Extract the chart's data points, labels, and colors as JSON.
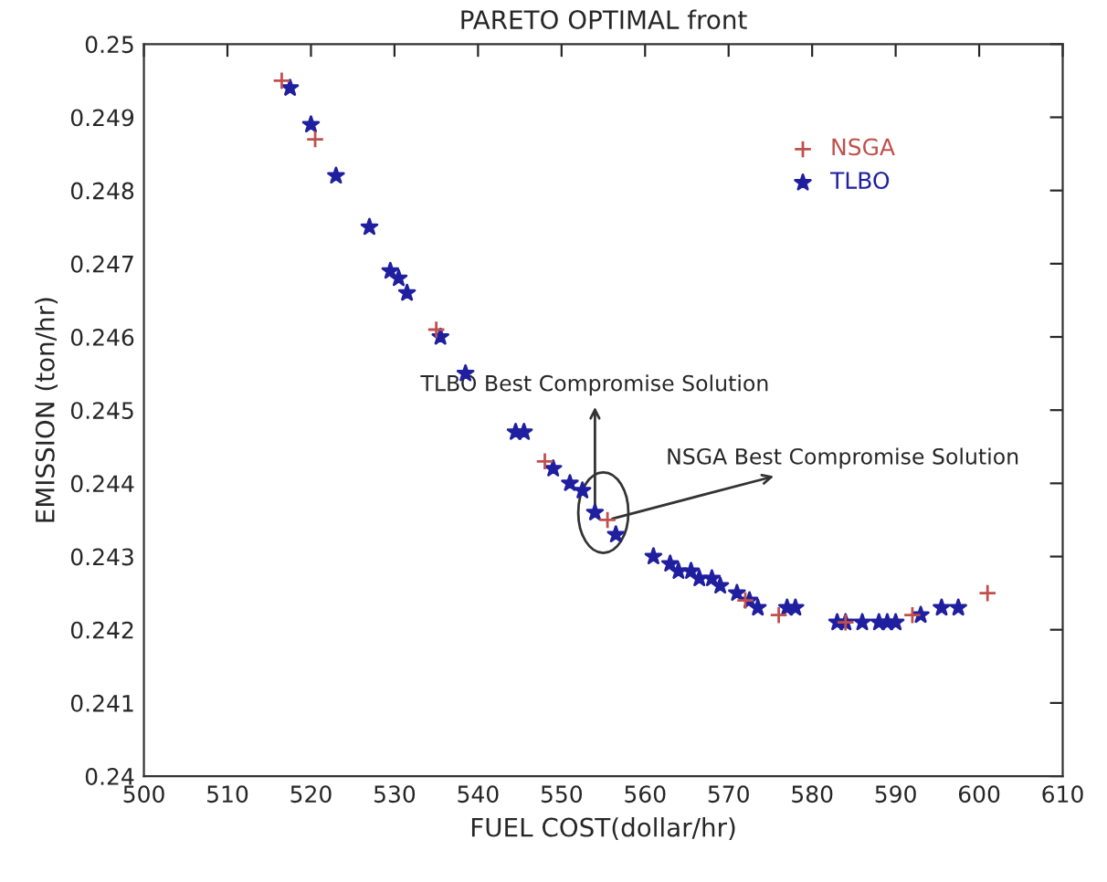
{
  "chart_data": {
    "type": "scatter",
    "title": "PARETO OPTIMAL front",
    "xlabel": "FUEL COST(dollar/hr)",
    "ylabel": "EMISSION (ton/hr)",
    "xlim": [
      500,
      610
    ],
    "xticks": [
      500,
      510,
      520,
      530,
      540,
      550,
      560,
      570,
      580,
      590,
      600,
      610
    ],
    "ylim": [
      0.24,
      0.25
    ],
    "yticks": [
      0.24,
      0.241,
      0.242,
      0.243,
      0.244,
      0.245,
      0.246,
      0.247,
      0.248,
      0.249,
      0.25
    ],
    "grid": false,
    "legend": "top right",
    "series": [
      {
        "name": "NSGA",
        "color": "#c0504d",
        "marker": "cross",
        "x": [
          516.5,
          520.5,
          535,
          548,
          555.5,
          572,
          576,
          584,
          592,
          601
        ],
        "values": [
          0.2495,
          0.2487,
          0.2461,
          0.2443,
          0.2435,
          0.2424,
          0.2422,
          0.2421,
          0.2422,
          0.2425
        ]
      },
      {
        "name": "TLBO",
        "color": "#1f1fa0",
        "marker": "star",
        "x": [
          517.5,
          520,
          523,
          527,
          529.5,
          530.5,
          531.5,
          535.5,
          538.5,
          544.5,
          545.5,
          549,
          551,
          552.5,
          554,
          556.5,
          561,
          563,
          564,
          565.5,
          566.5,
          568,
          569,
          571,
          572.5,
          573.5,
          577,
          578,
          583,
          584,
          586,
          588,
          589,
          590,
          593,
          595.5,
          597.5
        ],
        "values": [
          0.2494,
          0.2489,
          0.2482,
          0.2475,
          0.2469,
          0.2468,
          0.2466,
          0.246,
          0.2455,
          0.2447,
          0.2447,
          0.2442,
          0.244,
          0.2439,
          0.2436,
          0.2433,
          0.243,
          0.2429,
          0.2428,
          0.2428,
          0.2427,
          0.2427,
          0.2426,
          0.2425,
          0.2424,
          0.2423,
          0.2423,
          0.2423,
          0.2421,
          0.2421,
          0.2421,
          0.2421,
          0.2421,
          0.2421,
          0.2422,
          0.2423,
          0.2423
        ]
      }
    ],
    "annotations": [
      {
        "text": "TLBO Best Compromise Solution",
        "x": 554,
        "y": 0.2436
      },
      {
        "text": "NSGA Best Compromise Solution",
        "x": 555.5,
        "y": 0.2435
      }
    ]
  }
}
